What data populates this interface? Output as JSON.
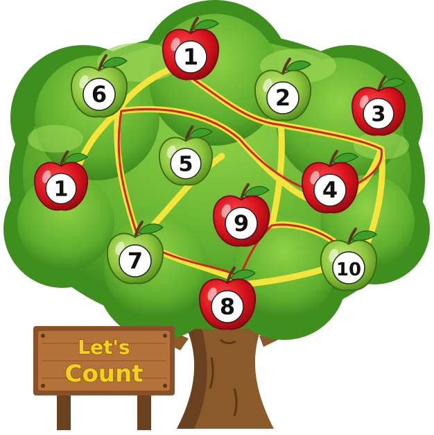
{
  "game": {
    "sign": {
      "line1": "Let's",
      "line2": "Count"
    },
    "apples": [
      {
        "id": "top-1",
        "label": "1",
        "color": "red"
      },
      {
        "id": "six",
        "label": "6",
        "color": "green"
      },
      {
        "id": "two",
        "label": "2",
        "color": "green"
      },
      {
        "id": "three",
        "label": "3",
        "color": "red"
      },
      {
        "id": "left-1",
        "label": "1",
        "color": "red"
      },
      {
        "id": "five",
        "label": "5",
        "color": "green"
      },
      {
        "id": "four",
        "label": "4",
        "color": "red"
      },
      {
        "id": "nine",
        "label": "9",
        "color": "red"
      },
      {
        "id": "seven",
        "label": "7",
        "color": "green"
      },
      {
        "id": "ten",
        "label": "10",
        "color": "green"
      },
      {
        "id": "eight",
        "label": "8",
        "color": "red"
      }
    ]
  },
  "colors": {
    "foliage_dark": "#3f8f1e",
    "foliage_mid": "#58ac2c",
    "foliage_light": "#86c83f",
    "trunk": "#8b5a2b",
    "trunk_dark": "#6a4220",
    "path_yellow": "#f5e43a",
    "path_red": "#d6221d",
    "apple_red": "#d8121c",
    "apple_green": "#8cc43c",
    "sign_wood": "#b5713a"
  }
}
